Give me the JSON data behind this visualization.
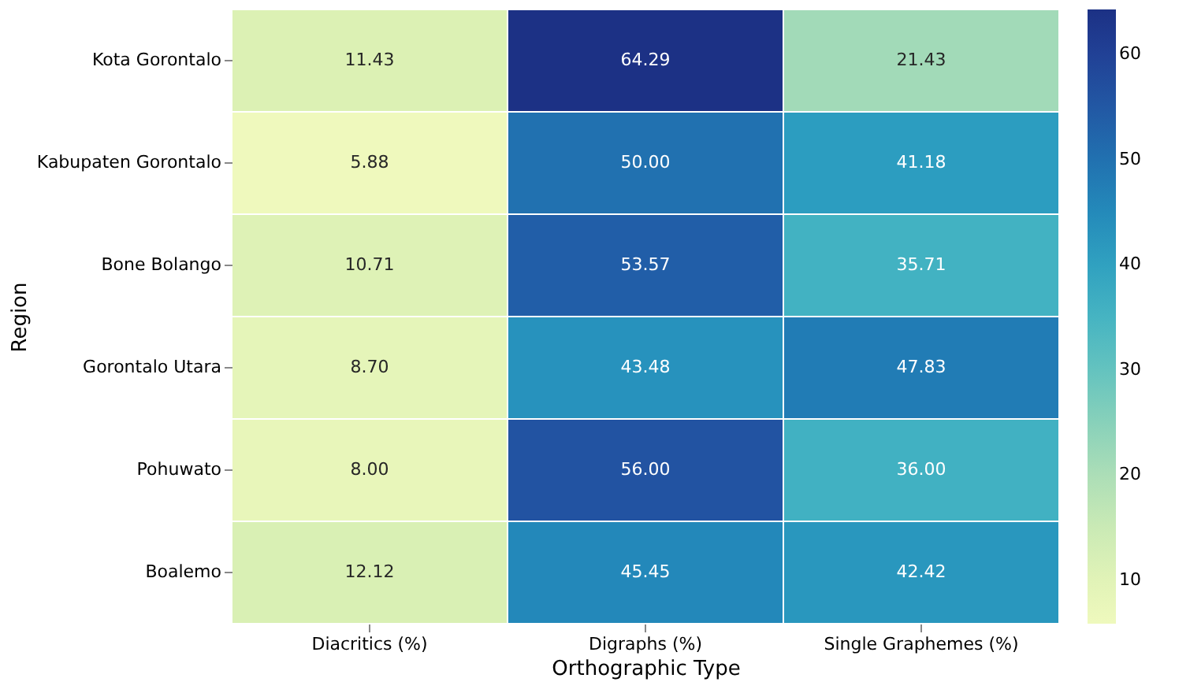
{
  "chart_data": {
    "type": "heatmap",
    "xlabel": "Orthographic Type",
    "ylabel": "Region",
    "categories": [
      "Diacritics (%)",
      "Digraphs (%)",
      "Single Graphemes (%)"
    ],
    "y_categories": [
      "Kota Gorontalo",
      "Kabupaten Gorontalo",
      "Bone Bolango",
      "Gorontalo Utara",
      "Pohuwato",
      "Boalemo"
    ],
    "cells": [
      [
        11.43,
        64.29,
        21.43
      ],
      [
        5.88,
        50.0,
        41.18
      ],
      [
        10.71,
        53.57,
        35.71
      ],
      [
        8.7,
        43.48,
        47.83
      ],
      [
        8.0,
        56.0,
        36.0
      ],
      [
        12.12,
        45.45,
        42.42
      ]
    ],
    "cell_labels": [
      [
        "11.43",
        "64.29",
        "21.43"
      ],
      [
        "5.88",
        "50.00",
        "41.18"
      ],
      [
        "10.71",
        "53.57",
        "35.71"
      ],
      [
        "8.70",
        "43.48",
        "47.83"
      ],
      [
        "8.00",
        "56.00",
        "36.00"
      ],
      [
        "12.12",
        "45.45",
        "42.42"
      ]
    ],
    "data_labels": true,
    "clim": [
      5.88,
      64.29
    ],
    "cticks": [
      10,
      20,
      30,
      40,
      50,
      60
    ]
  }
}
